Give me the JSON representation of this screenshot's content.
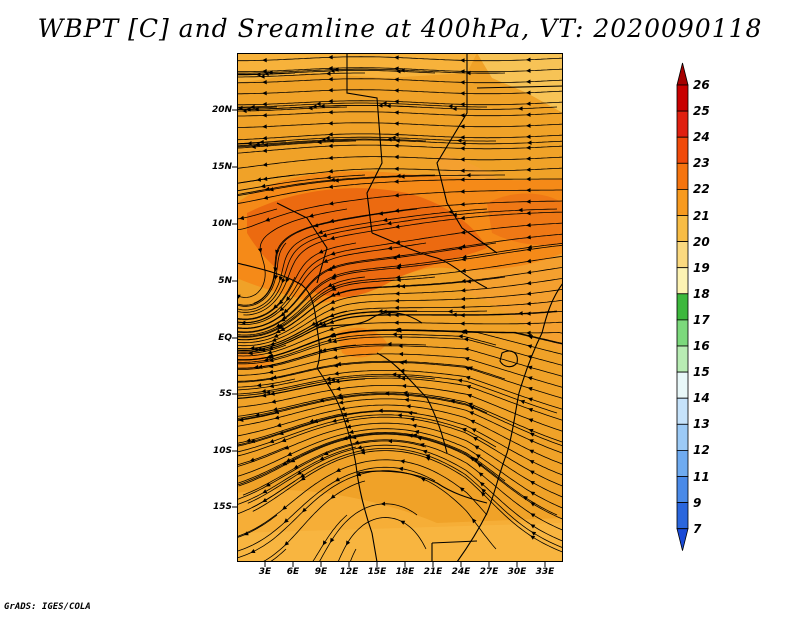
{
  "title": "WBPT [C] and Sreamline at 400hPa, VT: 2020090118",
  "credit": "GrADS: IGES/COLA",
  "map": {
    "lat_labels": [
      "20N",
      "15N",
      "10N",
      "5N",
      "EQ",
      "5S",
      "10S",
      "15S"
    ],
    "lon_labels": [
      "3E",
      "6E",
      "9E",
      "12E",
      "15E",
      "18E",
      "21E",
      "24E",
      "27E",
      "30E",
      "33E"
    ],
    "lat_range": [
      -19.5,
      24.5
    ],
    "lon_range": [
      0,
      35
    ],
    "field": "WBPT [C]",
    "dominant_colors": [
      "#f0a228",
      "#f58a18",
      "#ec6a10",
      "#f7c356"
    ]
  },
  "colorbar": {
    "labels": [
      "26",
      "25",
      "24",
      "23",
      "22",
      "21",
      "20",
      "19",
      "18",
      "17",
      "16",
      "15",
      "14",
      "13",
      "12",
      "11",
      "9",
      "7"
    ],
    "colors": [
      "#a50000",
      "#c80000",
      "#e02010",
      "#f04a0a",
      "#f5740f",
      "#f79a1f",
      "#f7bc45",
      "#fbd97f",
      "#fdf3b3",
      "#3db83d",
      "#7cd97c",
      "#b8ecb3",
      "#e9f8f9",
      "#c6e3fb",
      "#9ccaf6",
      "#6fabf0",
      "#4a8ae8",
      "#2a66dd",
      "#1a4ad6"
    ],
    "arrow_top_color": "#a50000",
    "arrow_bottom_color": "#1a4ad6"
  }
}
